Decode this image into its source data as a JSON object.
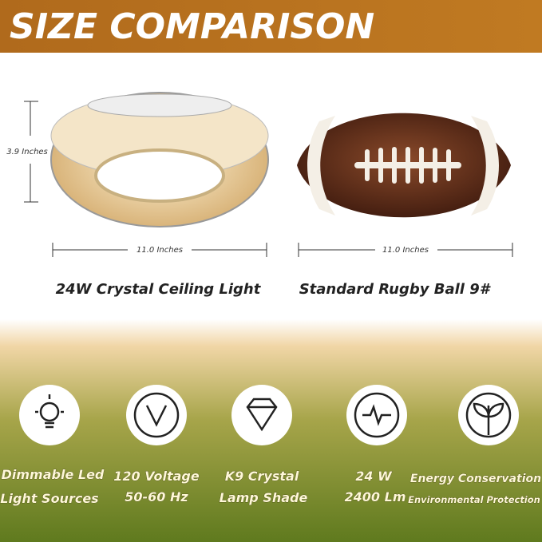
{
  "header": {
    "title": "SIZE COMPARISON"
  },
  "comparison": [
    {
      "name": "24W Crystal Ceiling Light",
      "height": "3.9 Inches",
      "width": "11.0 Inches"
    },
    {
      "name": "Standard Rugby Ball 9#",
      "width": "11.0 Inches"
    }
  ],
  "features": [
    {
      "lines": [
        "Dimmable Led",
        "Light Sources"
      ]
    },
    {
      "lines": [
        "120 Voltage",
        "50-60 Hz"
      ]
    },
    {
      "lines": [
        "K9 Crystal",
        "Lamp Shade"
      ]
    },
    {
      "lines": [
        "24 W",
        "2400 Lm"
      ]
    },
    {
      "lines": [
        "Energy Conservation",
        "Environmental Protection"
      ]
    }
  ]
}
